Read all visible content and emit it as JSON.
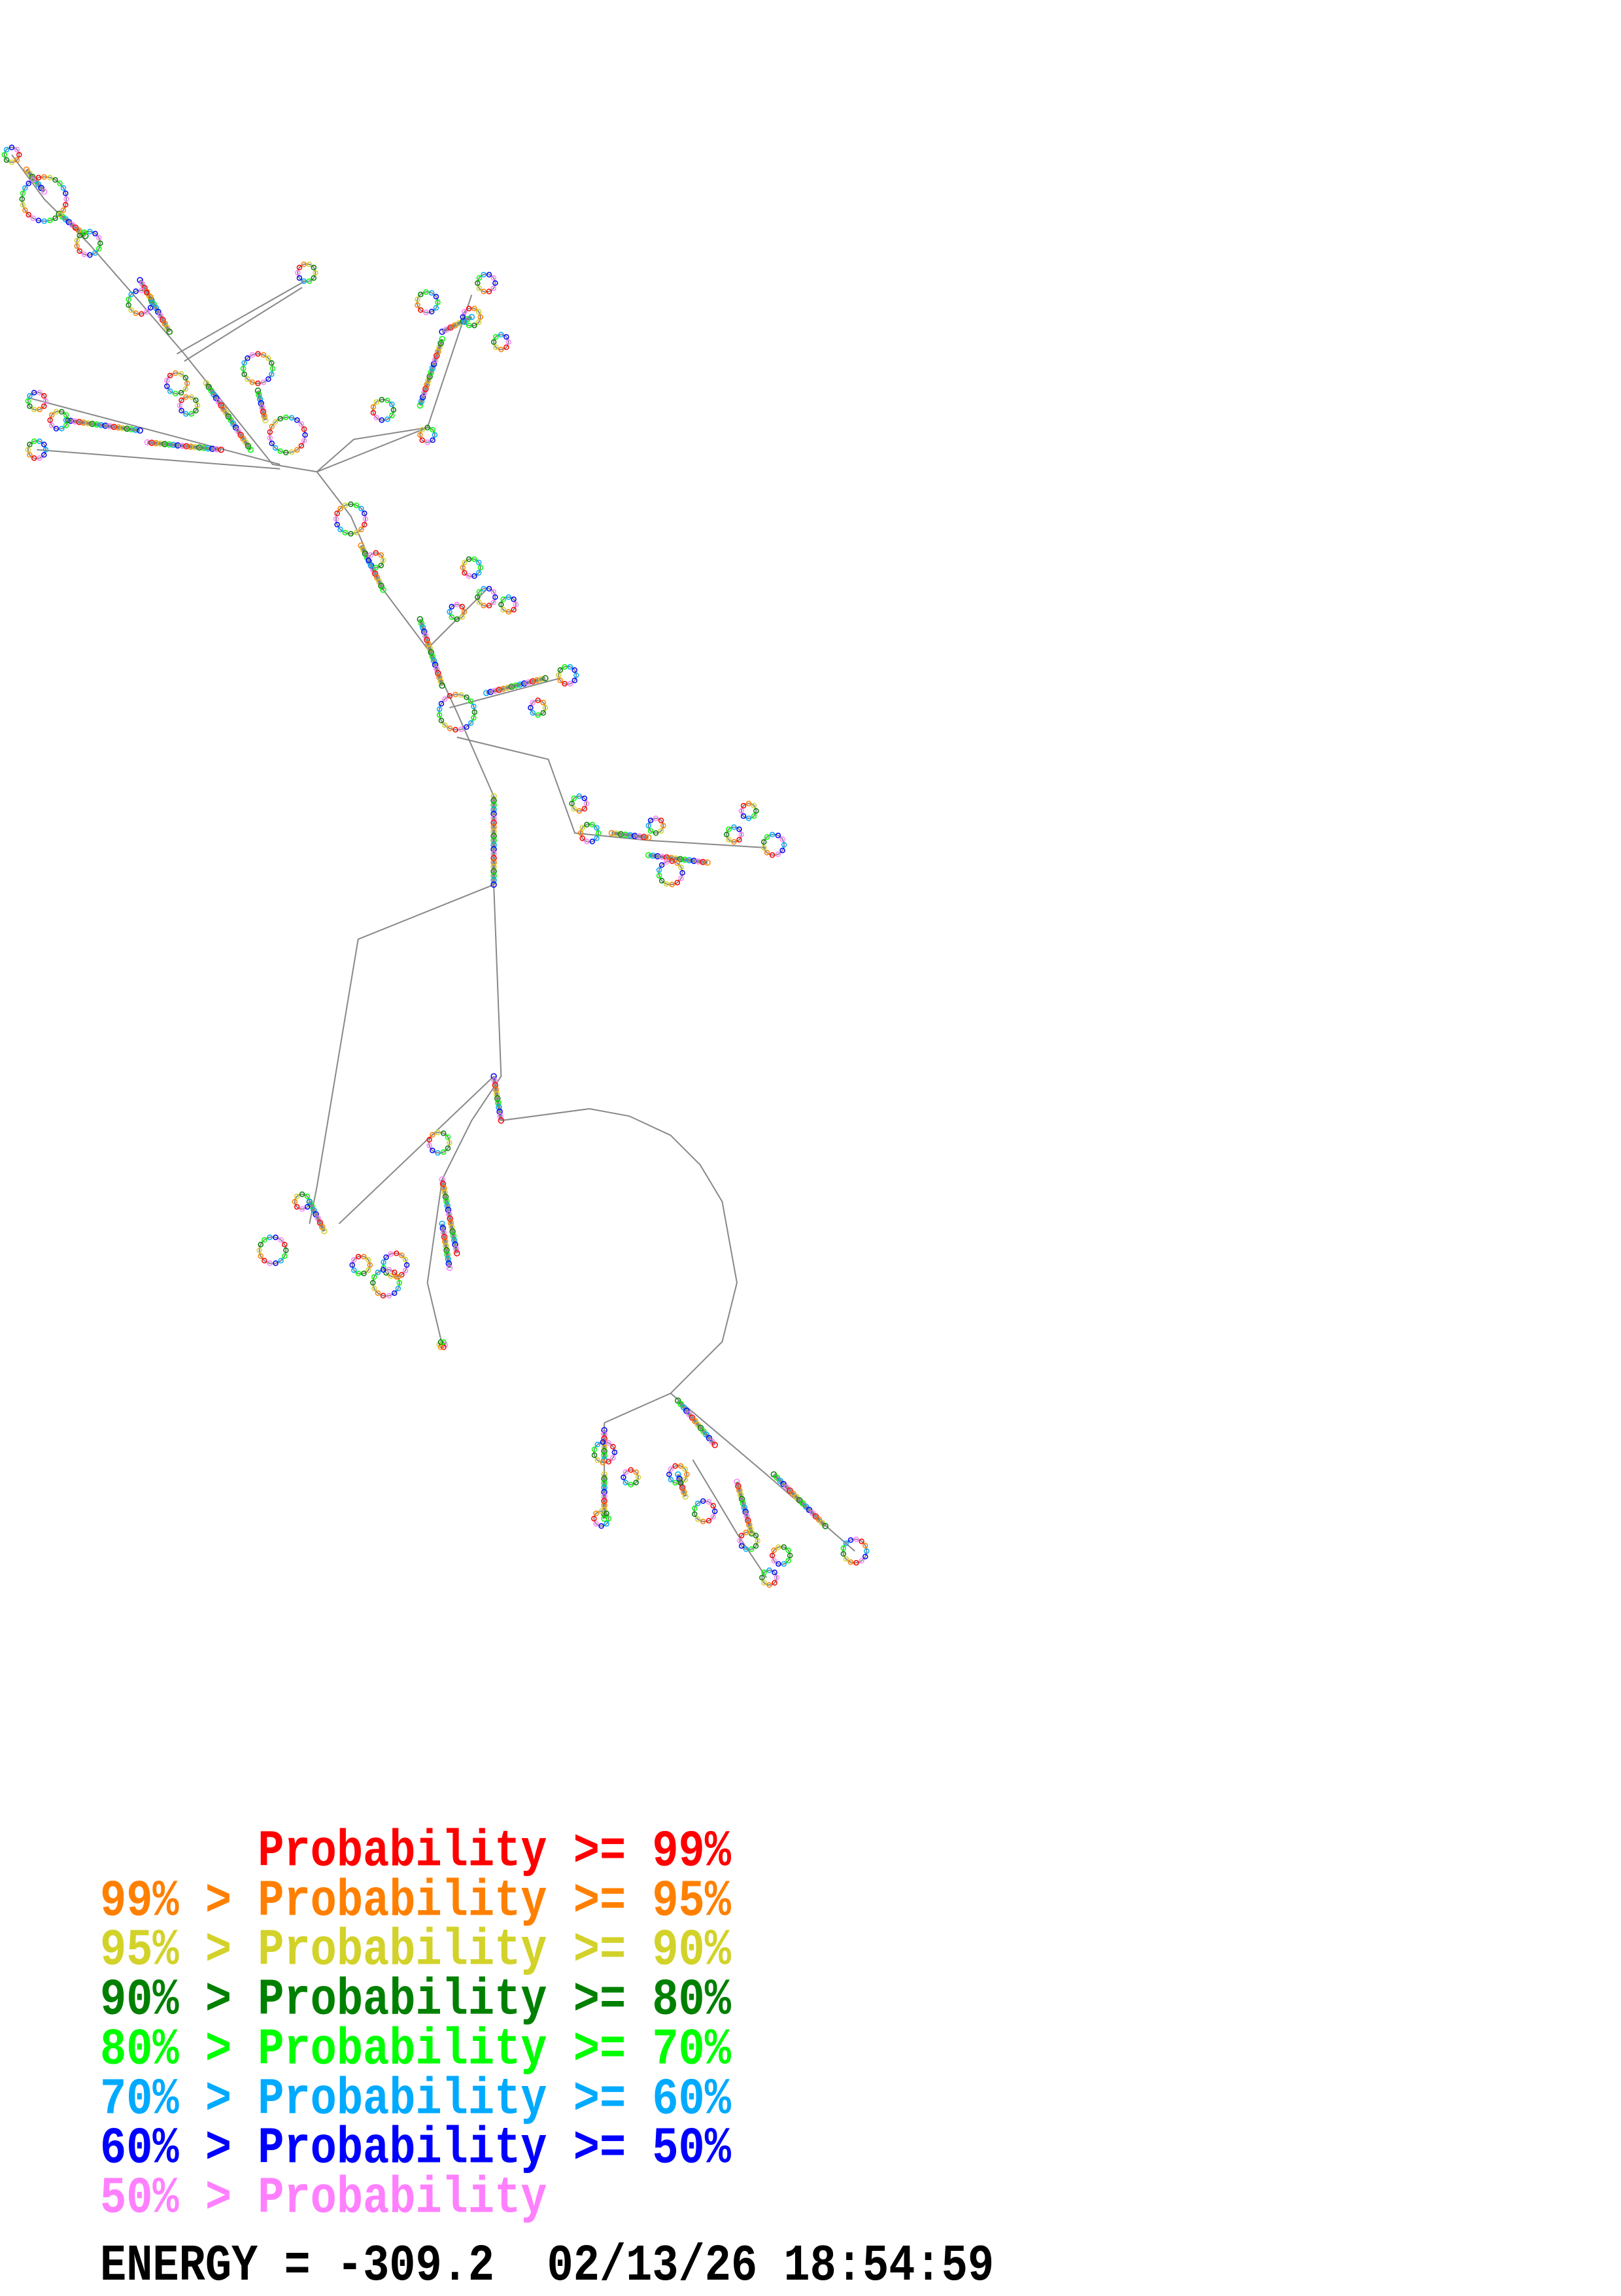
{
  "legend": {
    "rows": [
      {
        "prefix": "",
        "label": "Probability",
        "suffix": ">= 99%",
        "color": "#ff0000"
      },
      {
        "prefix": "99% >",
        "label": "Probability",
        "suffix": ">= 95%",
        "color": "#ff8000"
      },
      {
        "prefix": "95% >",
        "label": "Probability",
        "suffix": ">= 90%",
        "color": "#d2d22a"
      },
      {
        "prefix": "90% >",
        "label": "Probability",
        "suffix": ">= 80%",
        "color": "#008000"
      },
      {
        "prefix": "80% >",
        "label": "Probability",
        "suffix": ">= 70%",
        "color": "#00ff00"
      },
      {
        "prefix": "70% >",
        "label": "Probability",
        "suffix": ">= 60%",
        "color": "#00aaff"
      },
      {
        "prefix": "60% >",
        "label": "Probability",
        "suffix": ">= 50%",
        "color": "#0000ff"
      },
      {
        "prefix": "50% >",
        "label": "Probability",
        "suffix": "",
        "color": "#ff80ff"
      }
    ]
  },
  "footer": {
    "energy": "ENERGY = -309.2",
    "timestamp": "02/13/26 18:54:59"
  },
  "structure": {
    "type": "RNA secondary structure",
    "backbone_color": "#888888"
  }
}
